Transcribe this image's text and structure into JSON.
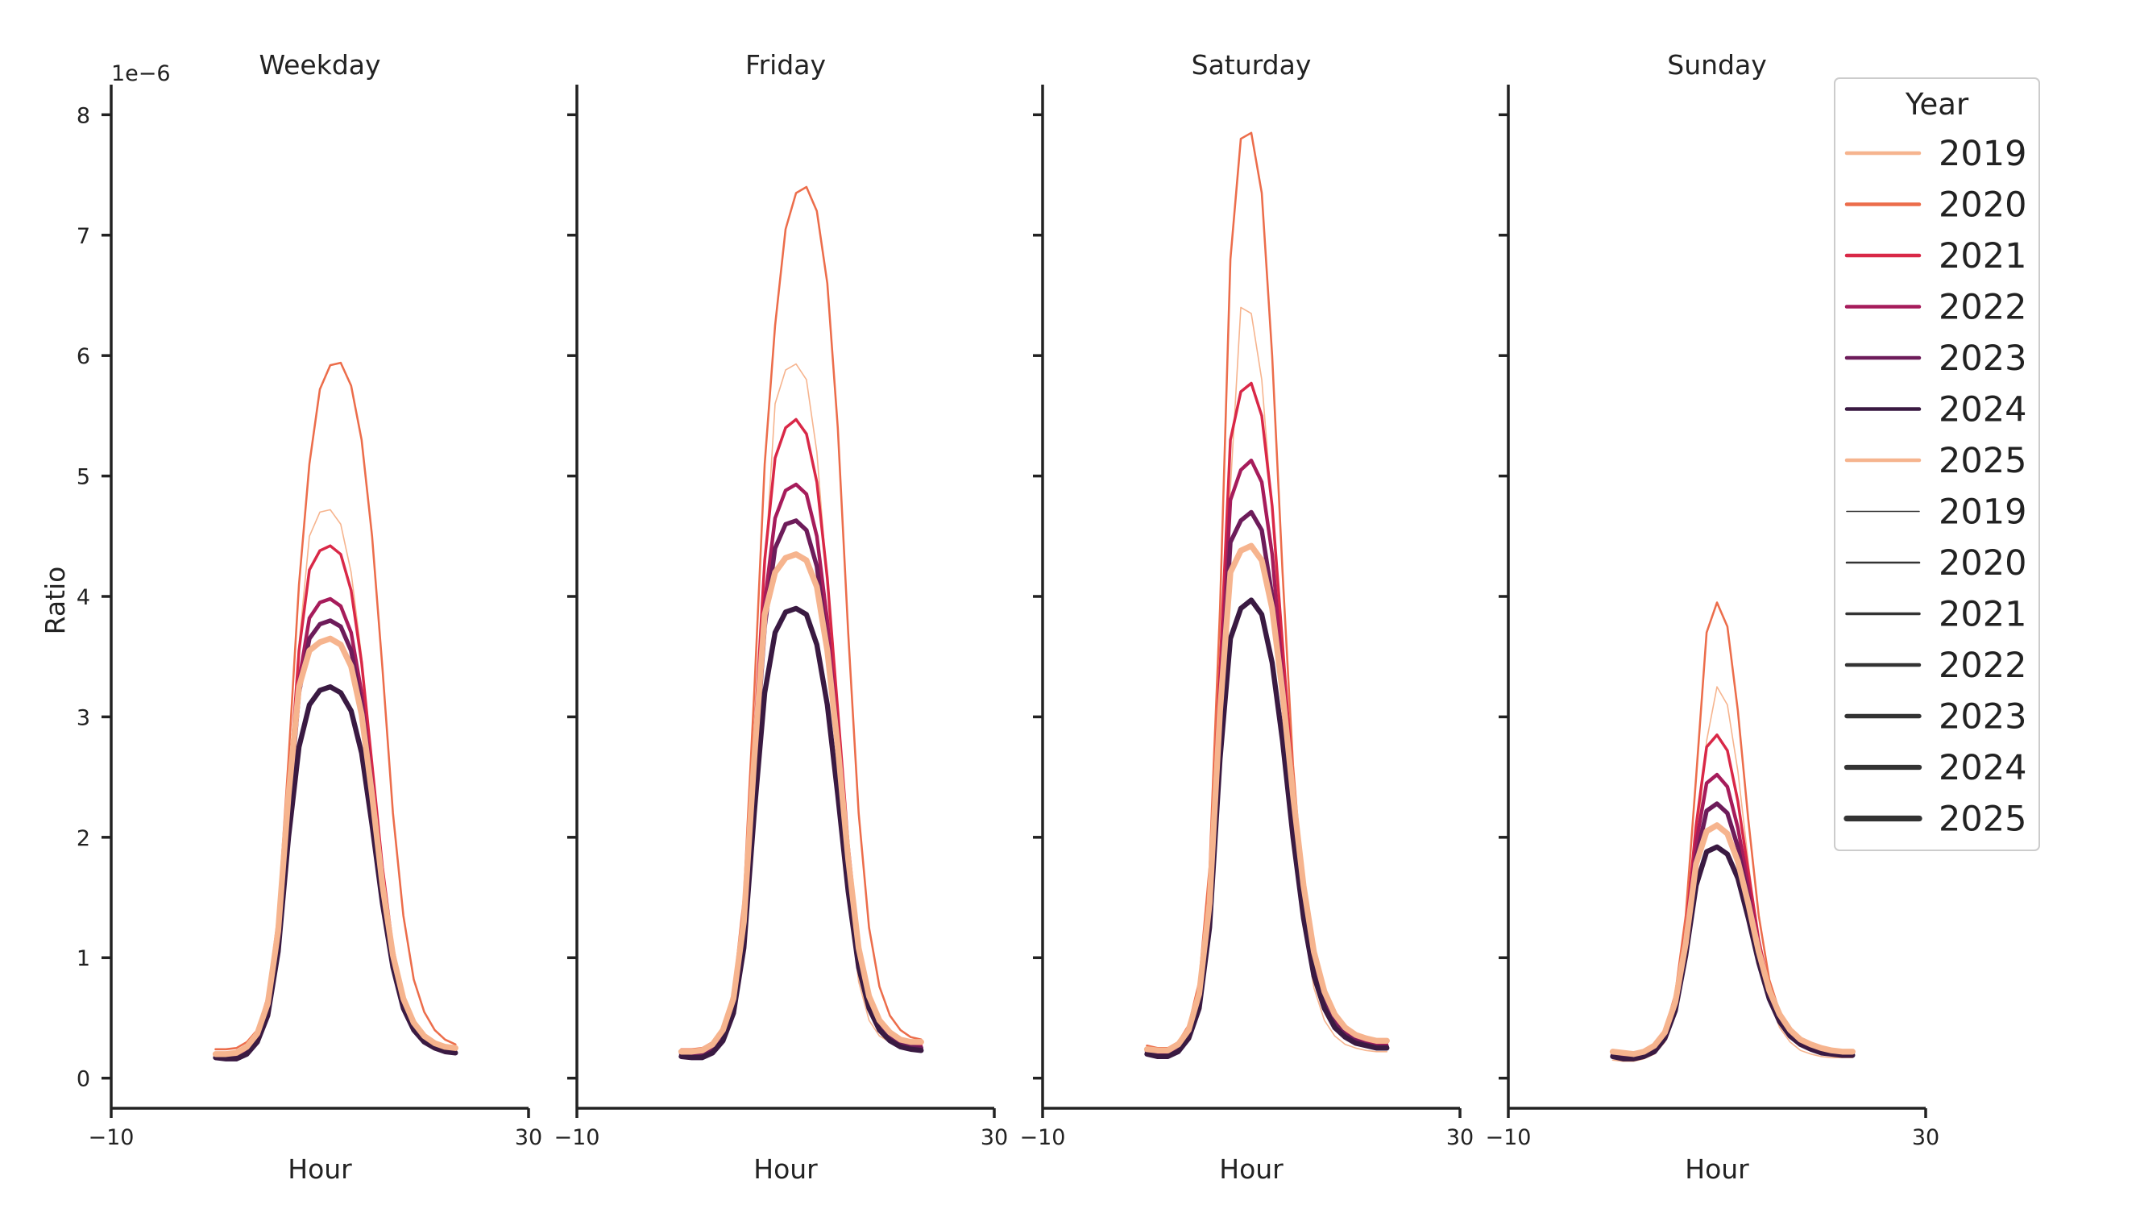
{
  "chart_data": {
    "type": "line",
    "ylabel": "Ratio",
    "y_offset_label": "1e−6",
    "y_scale": 1e-06,
    "ylim": [
      -0.25,
      8.25
    ],
    "yticks": [
      0,
      1,
      2,
      3,
      4,
      5,
      6,
      7,
      8
    ],
    "xlim": [
      -10,
      30
    ],
    "xticks": [
      -10,
      30
    ],
    "x": [
      0,
      1,
      2,
      3,
      4,
      5,
      6,
      7,
      8,
      9,
      10,
      11,
      12,
      13,
      14,
      15,
      16,
      17,
      18,
      19,
      20,
      21,
      22,
      23
    ],
    "legend": {
      "title": "Year",
      "placement": "upper-right",
      "hue_entries": [
        {
          "label": "2019",
          "color": "#f6b48e"
        },
        {
          "label": "2020",
          "color": "#ec6d4b"
        },
        {
          "label": "2021",
          "color": "#d92847"
        },
        {
          "label": "2022",
          "color": "#a61c5b"
        },
        {
          "label": "2023",
          "color": "#6d1c5a"
        },
        {
          "label": "2024",
          "color": "#3a1a42"
        },
        {
          "label": "2025",
          "color": "#f6b48e"
        }
      ],
      "size_entries": [
        {
          "label": "2019",
          "width": 1
        },
        {
          "label": "2020",
          "width": 2
        },
        {
          "label": "2021",
          "width": 3
        },
        {
          "label": "2022",
          "width": 4
        },
        {
          "label": "2023",
          "width": 5
        },
        {
          "label": "2024",
          "width": 6
        },
        {
          "label": "2025",
          "width": 7
        }
      ]
    },
    "panels": [
      {
        "title": "Weekday",
        "xlabel": "Hour",
        "series": [
          {
            "year": "2019",
            "values": [
              0.18,
              0.17,
              0.18,
              0.22,
              0.33,
              0.6,
              1.2,
              2.3,
              3.6,
              4.5,
              4.7,
              4.72,
              4.6,
              4.2,
              3.5,
              2.6,
              1.7,
              1.0,
              0.62,
              0.42,
              0.3,
              0.24,
              0.22,
              0.22
            ]
          },
          {
            "year": "2020",
            "values": [
              0.24,
              0.24,
              0.25,
              0.3,
              0.4,
              0.68,
              1.35,
              2.65,
              4.1,
              5.1,
              5.72,
              5.92,
              5.94,
              5.75,
              5.3,
              4.5,
              3.4,
              2.2,
              1.35,
              0.82,
              0.55,
              0.4,
              0.32,
              0.28
            ]
          },
          {
            "year": "2021",
            "values": [
              0.21,
              0.2,
              0.21,
              0.25,
              0.35,
              0.6,
              1.2,
              2.35,
              3.55,
              4.22,
              4.38,
              4.42,
              4.35,
              4.05,
              3.45,
              2.6,
              1.75,
              1.08,
              0.67,
              0.45,
              0.33,
              0.27,
              0.24,
              0.23
            ]
          },
          {
            "year": "2022",
            "values": [
              0.2,
              0.19,
              0.2,
              0.24,
              0.34,
              0.58,
              1.15,
              2.25,
              3.3,
              3.82,
              3.95,
              3.98,
              3.92,
              3.7,
              3.2,
              2.45,
              1.65,
              1.02,
              0.64,
              0.43,
              0.32,
              0.26,
              0.23,
              0.22
            ]
          },
          {
            "year": "2023",
            "values": [
              0.19,
              0.18,
              0.19,
              0.23,
              0.33,
              0.56,
              1.12,
              2.2,
              3.2,
              3.65,
              3.77,
              3.8,
              3.75,
              3.55,
              3.1,
              2.38,
              1.6,
              1.0,
              0.63,
              0.42,
              0.31,
              0.25,
              0.22,
              0.21
            ]
          },
          {
            "year": "2024",
            "values": [
              0.17,
              0.16,
              0.16,
              0.2,
              0.3,
              0.52,
              1.05,
              2.0,
              2.75,
              3.1,
              3.22,
              3.25,
              3.2,
              3.05,
              2.7,
              2.1,
              1.45,
              0.92,
              0.58,
              0.4,
              0.3,
              0.25,
              0.22,
              0.21
            ]
          },
          {
            "year": "2025",
            "values": [
              0.2,
              0.2,
              0.21,
              0.26,
              0.37,
              0.62,
              1.22,
              2.35,
              3.25,
              3.55,
              3.62,
              3.65,
              3.6,
              3.42,
              3.02,
              2.35,
              1.6,
              1.02,
              0.66,
              0.46,
              0.35,
              0.29,
              0.26,
              0.25
            ]
          }
        ]
      },
      {
        "title": "Friday",
        "xlabel": "Hour",
        "series": [
          {
            "year": "2019",
            "values": [
              0.2,
              0.19,
              0.2,
              0.23,
              0.33,
              0.55,
              1.1,
              2.5,
              4.2,
              5.6,
              5.88,
              5.93,
              5.8,
              5.2,
              4.1,
              2.7,
              1.5,
              0.8,
              0.48,
              0.35,
              0.3,
              0.26,
              0.24,
              0.24
            ]
          },
          {
            "year": "2020",
            "values": [
              0.24,
              0.24,
              0.25,
              0.3,
              0.42,
              0.72,
              1.5,
              3.2,
              5.1,
              6.25,
              7.05,
              7.35,
              7.4,
              7.2,
              6.6,
              5.4,
              3.7,
              2.2,
              1.25,
              0.76,
              0.52,
              0.4,
              0.34,
              0.32
            ]
          },
          {
            "year": "2021",
            "values": [
              0.22,
              0.21,
              0.22,
              0.27,
              0.38,
              0.65,
              1.3,
              2.8,
              4.3,
              5.15,
              5.4,
              5.47,
              5.35,
              4.95,
              4.15,
              3.05,
              1.95,
              1.12,
              0.7,
              0.48,
              0.37,
              0.31,
              0.28,
              0.27
            ]
          },
          {
            "year": "2022",
            "values": [
              0.21,
              0.2,
              0.21,
              0.26,
              0.36,
              0.62,
              1.25,
              2.65,
              3.95,
              4.65,
              4.88,
              4.93,
              4.85,
              4.5,
              3.8,
              2.85,
              1.85,
              1.08,
              0.67,
              0.46,
              0.35,
              0.3,
              0.27,
              0.26
            ]
          },
          {
            "year": "2023",
            "values": [
              0.2,
              0.19,
              0.2,
              0.25,
              0.35,
              0.6,
              1.2,
              2.5,
              3.75,
              4.4,
              4.6,
              4.63,
              4.55,
              4.25,
              3.6,
              2.7,
              1.75,
              1.03,
              0.64,
              0.44,
              0.34,
              0.29,
              0.26,
              0.25
            ]
          },
          {
            "year": "2024",
            "values": [
              0.18,
              0.17,
              0.17,
              0.21,
              0.31,
              0.54,
              1.08,
              2.2,
              3.2,
              3.7,
              3.87,
              3.9,
              3.85,
              3.6,
              3.1,
              2.35,
              1.55,
              0.92,
              0.58,
              0.4,
              0.31,
              0.26,
              0.24,
              0.23
            ]
          },
          {
            "year": "2025",
            "values": [
              0.22,
              0.22,
              0.23,
              0.28,
              0.4,
              0.66,
              1.3,
              2.65,
              3.85,
              4.2,
              4.32,
              4.35,
              4.3,
              4.08,
              3.55,
              2.75,
              1.82,
              1.08,
              0.68,
              0.48,
              0.38,
              0.32,
              0.3,
              0.3
            ]
          }
        ]
      },
      {
        "title": "Saturday",
        "xlabel": "Hour",
        "series": [
          {
            "year": "2019",
            "values": [
              0.22,
              0.2,
              0.2,
              0.24,
              0.35,
              0.62,
              1.3,
              2.9,
              4.9,
              6.4,
              6.35,
              5.8,
              4.7,
              3.4,
              2.2,
              1.3,
              0.75,
              0.48,
              0.35,
              0.28,
              0.25,
              0.23,
              0.22,
              0.22
            ]
          },
          {
            "year": "2020",
            "values": [
              0.27,
              0.25,
              0.25,
              0.3,
              0.44,
              0.8,
              1.75,
              3.9,
              6.8,
              7.8,
              7.85,
              7.35,
              6.0,
              4.2,
              2.6,
              1.55,
              0.95,
              0.62,
              0.45,
              0.36,
              0.31,
              0.28,
              0.27,
              0.27
            ]
          },
          {
            "year": "2021",
            "values": [
              0.24,
              0.22,
              0.22,
              0.27,
              0.4,
              0.72,
              1.55,
              3.4,
              5.3,
              5.7,
              5.77,
              5.5,
              4.75,
              3.6,
              2.45,
              1.55,
              0.98,
              0.66,
              0.48,
              0.38,
              0.33,
              0.3,
              0.28,
              0.28
            ]
          },
          {
            "year": "2022",
            "values": [
              0.23,
              0.21,
              0.21,
              0.26,
              0.38,
              0.68,
              1.45,
              3.2,
              4.8,
              5.05,
              5.13,
              4.95,
              4.35,
              3.35,
              2.35,
              1.5,
              0.95,
              0.64,
              0.47,
              0.37,
              0.32,
              0.29,
              0.27,
              0.27
            ]
          },
          {
            "year": "2023",
            "values": [
              0.22,
              0.2,
              0.2,
              0.25,
              0.37,
              0.65,
              1.38,
              3.0,
              4.45,
              4.63,
              4.7,
              4.55,
              4.0,
              3.15,
              2.22,
              1.45,
              0.92,
              0.62,
              0.45,
              0.36,
              0.31,
              0.28,
              0.26,
              0.26
            ]
          },
          {
            "year": "2024",
            "values": [
              0.2,
              0.18,
              0.18,
              0.22,
              0.33,
              0.58,
              1.25,
              2.65,
              3.65,
              3.9,
              3.97,
              3.85,
              3.45,
              2.8,
              2.0,
              1.33,
              0.85,
              0.58,
              0.42,
              0.34,
              0.29,
              0.27,
              0.25,
              0.25
            ]
          },
          {
            "year": "2025",
            "values": [
              0.24,
              0.23,
              0.23,
              0.28,
              0.4,
              0.7,
              1.45,
              3.05,
              4.2,
              4.38,
              4.42,
              4.3,
              3.9,
              3.2,
              2.35,
              1.6,
              1.05,
              0.72,
              0.53,
              0.42,
              0.36,
              0.33,
              0.31,
              0.31
            ]
          }
        ]
      },
      {
        "title": "Sunday",
        "xlabel": "Hour",
        "series": [
          {
            "year": "2019",
            "values": [
              0.15,
              0.14,
              0.14,
              0.16,
              0.2,
              0.3,
              0.55,
              1.05,
              1.9,
              2.8,
              3.25,
              3.1,
              2.55,
              1.8,
              1.1,
              0.65,
              0.42,
              0.3,
              0.23,
              0.2,
              0.18,
              0.17,
              0.17,
              0.17
            ]
          },
          {
            "year": "2020",
            "values": [
              0.22,
              0.21,
              0.21,
              0.23,
              0.28,
              0.4,
              0.7,
              1.35,
              2.5,
              3.7,
              3.95,
              3.75,
              3.05,
              2.15,
              1.35,
              0.82,
              0.55,
              0.4,
              0.32,
              0.27,
              0.24,
              0.23,
              0.22,
              0.22
            ]
          },
          {
            "year": "2021",
            "values": [
              0.2,
              0.19,
              0.19,
              0.21,
              0.26,
              0.37,
              0.64,
              1.22,
              2.1,
              2.75,
              2.85,
              2.72,
              2.3,
              1.72,
              1.15,
              0.75,
              0.52,
              0.38,
              0.3,
              0.26,
              0.23,
              0.21,
              0.2,
              0.2
            ]
          },
          {
            "year": "2022",
            "values": [
              0.2,
              0.18,
              0.18,
              0.2,
              0.25,
              0.36,
              0.62,
              1.15,
              1.95,
              2.45,
              2.52,
              2.42,
              2.08,
              1.6,
              1.1,
              0.73,
              0.51,
              0.38,
              0.3,
              0.25,
              0.22,
              0.21,
              0.2,
              0.2
            ]
          },
          {
            "year": "2023",
            "values": [
              0.19,
              0.18,
              0.17,
              0.19,
              0.24,
              0.35,
              0.6,
              1.1,
              1.82,
              2.22,
              2.28,
              2.2,
              1.92,
              1.5,
              1.05,
              0.71,
              0.5,
              0.37,
              0.29,
              0.25,
              0.22,
              0.2,
              0.19,
              0.19
            ]
          },
          {
            "year": "2024",
            "values": [
              0.18,
              0.16,
              0.16,
              0.18,
              0.22,
              0.33,
              0.56,
              1.02,
              1.6,
              1.88,
              1.92,
              1.86,
              1.66,
              1.33,
              0.96,
              0.66,
              0.47,
              0.35,
              0.28,
              0.24,
              0.21,
              0.2,
              0.19,
              0.19
            ]
          },
          {
            "year": "2025",
            "values": [
              0.22,
              0.21,
              0.2,
              0.22,
              0.27,
              0.38,
              0.63,
              1.12,
              1.78,
              2.05,
              2.1,
              2.03,
              1.8,
              1.45,
              1.05,
              0.73,
              0.53,
              0.4,
              0.32,
              0.28,
              0.25,
              0.23,
              0.22,
              0.22
            ]
          }
        ]
      }
    ]
  }
}
